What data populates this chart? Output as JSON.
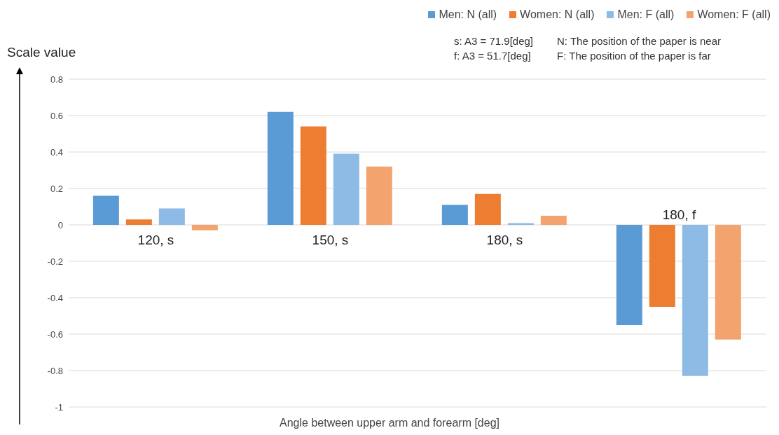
{
  "chart_data": {
    "type": "bar",
    "xlabel": "Angle between upper arm and forearm [deg]",
    "ylabel": "Scale value",
    "categories": [
      "120, s",
      "150, s",
      "180, s",
      "180, f"
    ],
    "series": [
      {
        "name": "Men: N (all)",
        "color": "#5b9bd5",
        "values": [
          0.16,
          0.62,
          0.11,
          -0.55
        ]
      },
      {
        "name": "Women: N (all)",
        "color": "#ed7d31",
        "values": [
          0.03,
          0.54,
          0.17,
          -0.45
        ]
      },
      {
        "name": "Men: F (all)",
        "color": "#8dbbe6",
        "values": [
          0.09,
          0.39,
          0.01,
          -0.83
        ]
      },
      {
        "name": "Women: F (all)",
        "color": "#f3a46e",
        "values": [
          -0.03,
          0.32,
          0.05,
          -0.63
        ]
      }
    ],
    "ylim": [
      -1,
      0.8
    ],
    "yticks": [
      0.8,
      0.6,
      0.4,
      0.2,
      0,
      -0.2,
      -0.4,
      -0.6,
      -0.8,
      -1
    ],
    "grid": "y",
    "legend": "top right",
    "annotations": [
      "s: A3 = 71.9[deg]",
      "N: The position of the paper is near",
      "f: A3 = 51.7[deg]",
      "F: The position of the paper is far"
    ]
  }
}
